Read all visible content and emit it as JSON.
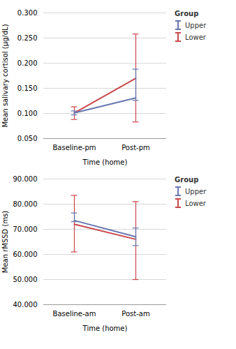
{
  "chart_data": [
    {
      "type": "line",
      "xlabel": "Time (home)",
      "ylabel": "Mean salivary cortisol (μg/dL)",
      "categories": [
        "Baseline-pm",
        "Post-pm"
      ],
      "ylim": [
        0.05,
        0.3
      ],
      "yticks": [
        {
          "value": 0.05,
          "label": "0.050"
        },
        {
          "value": 0.1,
          "label": "0.100"
        },
        {
          "value": 0.15,
          "label": "0.150"
        },
        {
          "value": 0.2,
          "label": "0.200"
        },
        {
          "value": 0.25,
          "label": "0.250"
        },
        {
          "value": 0.3,
          "label": "0.300"
        }
      ],
      "grid": true,
      "legend": "right",
      "legend_title": "Group",
      "series": [
        {
          "name": "Upper",
          "color": "#6676b0",
          "values": [
            0.101,
            0.131
          ],
          "ci_low": [
            0.097,
            0.126
          ],
          "ci_high": [
            0.105,
            0.188
          ]
        },
        {
          "name": "Lower",
          "color": "#c9474b",
          "values": [
            0.101,
            0.17
          ],
          "ci_low": [
            0.088,
            0.083
          ],
          "ci_high": [
            0.113,
            0.258
          ]
        }
      ]
    },
    {
      "type": "line",
      "xlabel": "Time (home)",
      "ylabel": "Mean rMSSD (ms)",
      "categories": [
        "Baseline-am",
        "Post-am"
      ],
      "ylim": [
        40.0,
        90.0
      ],
      "yticks": [
        {
          "value": 40.0,
          "label": "40.000"
        },
        {
          "value": 50.0,
          "label": "50.000"
        },
        {
          "value": 60.0,
          "label": "60.000"
        },
        {
          "value": 70.0,
          "label": "70.000"
        },
        {
          "value": 80.0,
          "label": "80.000"
        },
        {
          "value": 90.0,
          "label": "90.000"
        }
      ],
      "grid": true,
      "legend": "right",
      "legend_title": "Group",
      "series": [
        {
          "name": "Upper",
          "color": "#6676b0",
          "values": [
            73.5,
            67.0
          ],
          "ci_low": [
            73.0,
            63.5
          ],
          "ci_high": [
            76.5,
            70.5
          ]
        },
        {
          "name": "Lower",
          "color": "#c9474b",
          "values": [
            72.0,
            66.0
          ],
          "ci_low": [
            61.0,
            50.0
          ],
          "ci_high": [
            83.5,
            81.0
          ]
        }
      ]
    }
  ]
}
